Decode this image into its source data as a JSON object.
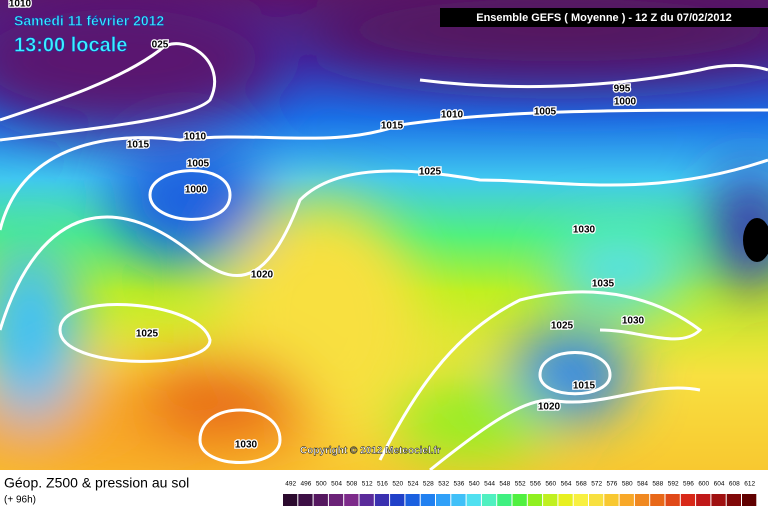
{
  "header": {
    "date": "Samedi 11 février 2012",
    "time": "13:00 locale",
    "model": "Ensemble GEFS ( Moyenne )  -  12 Z du 07/02/2012"
  },
  "isobar_labels": [
    "1010",
    "025",
    "1010",
    "1015",
    "1005",
    "1000",
    "1015",
    "1010",
    "1005",
    "995",
    "1000",
    "1025",
    "1020",
    "1025",
    "1030",
    "1035",
    "1030",
    "1025",
    "1015",
    "1020",
    "1030"
  ],
  "copyright": "Copyright © 2012 Meteociel.fr",
  "footer": {
    "title": "Géop. Z500 & pression au sol",
    "subtitle": "(+ 96h)"
  },
  "legend": {
    "values": [
      "492",
      "496",
      "500",
      "504",
      "508",
      "512",
      "516",
      "520",
      "524",
      "528",
      "532",
      "536",
      "540",
      "544",
      "548",
      "552",
      "556",
      "560",
      "564",
      "568",
      "572",
      "576",
      "580",
      "584",
      "588",
      "592",
      "596",
      "600",
      "604",
      "608",
      "612"
    ],
    "colors": [
      "#2b0a2e",
      "#3d0f45",
      "#55175f",
      "#6b2277",
      "#7d2a8a",
      "#5a2a9a",
      "#3a30b0",
      "#2040c8",
      "#1a60e0",
      "#2080f0",
      "#30a0f8",
      "#40c0f8",
      "#50e0f0",
      "#50f0c0",
      "#40f080",
      "#50f040",
      "#90f020",
      "#c0f020",
      "#e8f020",
      "#f8f040",
      "#f8e040",
      "#f8c830",
      "#f8a828",
      "#f08820",
      "#e86818",
      "#e04818",
      "#d82818",
      "#c01818",
      "#a01010",
      "#800808",
      "#600000"
    ]
  }
}
